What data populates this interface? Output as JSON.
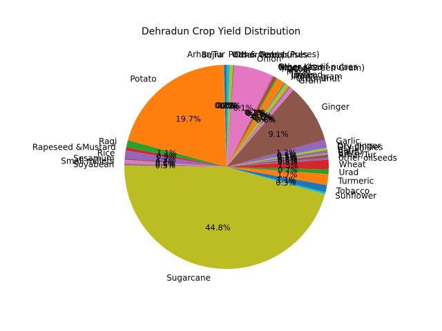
{
  "chart_data": {
    "type": "pie",
    "title": "Dehradun Crop Yield Distribution",
    "start_angle_deg": 90,
    "direction": "counterclockwise",
    "pct_format": "one decimal place with % sign",
    "slices": [
      {
        "label": "Arhar/Tur",
        "value": 0.4,
        "color": "#1f77b4"
      },
      {
        "label": "Bajra",
        "value": 0.2,
        "color": "#ff7f0e"
      },
      {
        "label": "Potato",
        "value": 19.7,
        "color": "#ff7f0e"
      },
      {
        "label": "Ragi",
        "value": 1.1,
        "color": "#2ca02c"
      },
      {
        "label": "Rapeseed &Mustard",
        "value": 0.5,
        "color": "#d62728"
      },
      {
        "label": "Rice",
        "value": 1.2,
        "color": "#9467bd"
      },
      {
        "label": "Sesamum",
        "value": 0.2,
        "color": "#8c564b"
      },
      {
        "label": "Small millets",
        "value": 0.6,
        "color": "#e377c2"
      },
      {
        "label": "Soyabean",
        "value": 0.3,
        "color": "#7f7f7f"
      },
      {
        "label": "Sugarcane",
        "value": 44.8,
        "color": "#bcbd22"
      },
      {
        "label": "Sunflower",
        "value": 0.3,
        "color": "#17becf"
      },
      {
        "label": "Tobacco",
        "value": 1.1,
        "color": "#1f77b4"
      },
      {
        "label": "Turmeric",
        "value": 1.7,
        "color": "#ff7f0e"
      },
      {
        "label": "Urad",
        "value": 0.7,
        "color": "#2ca02c"
      },
      {
        "label": "Wheat",
        "value": 1.5,
        "color": "#d62728"
      },
      {
        "label": "other oilseeds",
        "value": 0.3,
        "color": "#9467bd"
      },
      {
        "label": "Arhar/Tur",
        "value": 0.5,
        "color": "#8c564b"
      },
      {
        "label": "Bajra",
        "value": 0.2,
        "color": "#e377c2"
      },
      {
        "label": "Barley",
        "value": 0.5,
        "color": "#7f7f7f"
      },
      {
        "label": "Dry chillies",
        "value": 0.3,
        "color": "#bcbd22"
      },
      {
        "label": "Dry ginger",
        "value": 0.1,
        "color": "#17becf"
      },
      {
        "label": "Garlic",
        "value": 1.2,
        "color": "#9467bd"
      },
      {
        "label": "Ginger",
        "value": 9.1,
        "color": "#8c564b"
      },
      {
        "label": "Gram",
        "value": 0.6,
        "color": "#e377c2"
      },
      {
        "label": "Groundnut",
        "value": 0.3,
        "color": "#7f7f7f"
      },
      {
        "label": "Horse-gram",
        "value": 0.6,
        "color": "#bcbd22"
      },
      {
        "label": "Jowar",
        "value": 0.1,
        "color": "#17becf"
      },
      {
        "label": "Linseed",
        "value": 0.1,
        "color": "#1f77b4"
      },
      {
        "label": "Maize",
        "value": 1.3,
        "color": "#ff7f0e"
      },
      {
        "label": "Masoor",
        "value": 0.3,
        "color": "#2ca02c"
      },
      {
        "label": "Moong(Green Gram)",
        "value": 0.3,
        "color": "#d62728"
      },
      {
        "label": "Niger seed",
        "value": 0.1,
        "color": "#9467bd"
      },
      {
        "label": "Other Kharif pulses",
        "value": 0.1,
        "color": "#8c564b"
      },
      {
        "label": "Onion",
        "value": 6.1,
        "color": "#e377c2"
      },
      {
        "label": "Other  Rabi pulses",
        "value": 0.2,
        "color": "#7f7f7f"
      },
      {
        "label": "Other Cereals",
        "value": 0.5,
        "color": "#bcbd22"
      },
      {
        "label": "Peas & beans (Pulses)",
        "value": 0.5,
        "color": "#17becf"
      }
    ]
  }
}
